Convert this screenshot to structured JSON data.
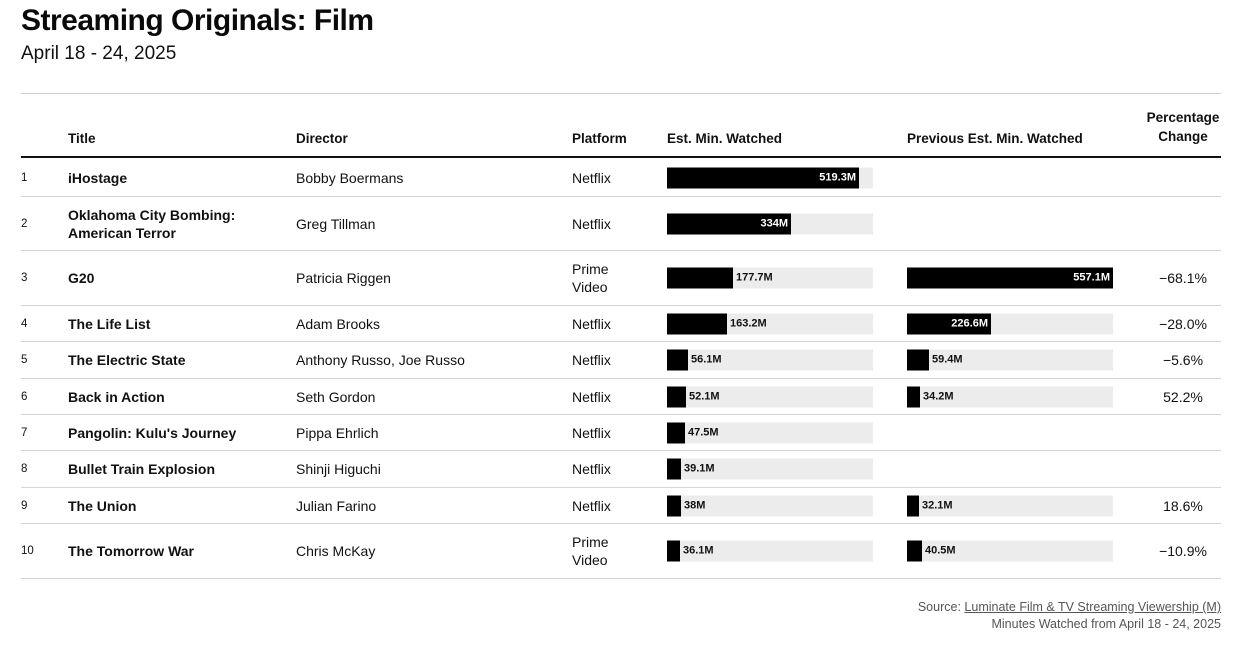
{
  "title": "Streaming Originals: Film",
  "subtitle": "April 18 - 24, 2025",
  "headers": {
    "title": "Title",
    "director": "Director",
    "platform": "Platform",
    "est": "Est. Min. Watched",
    "prev": "Previous Est. Min. Watched",
    "pct": "Percentage Change"
  },
  "source": {
    "prefix": "Source:",
    "link": "Luminate Film & TV Streaming Viewership (M)",
    "note": "Minutes Watched from April 18 - 24, 2025"
  },
  "colors": {
    "bar": "#000000",
    "track": "#ececec",
    "rule": "#d6d6d6"
  },
  "chart_data": {
    "type": "table",
    "scale_max": 557.1,
    "rows": [
      {
        "rank": "1",
        "title": "iHostage",
        "director": "Bobby Boermans",
        "platform": "Netflix",
        "est": 519.3,
        "est_label": "519.3M",
        "prev": null,
        "prev_label": "",
        "pct": ""
      },
      {
        "rank": "2",
        "title": "Oklahoma City Bombing: American Terror",
        "director": "Greg Tillman",
        "platform": "Netflix",
        "est": 334,
        "est_label": "334M",
        "prev": null,
        "prev_label": "",
        "pct": ""
      },
      {
        "rank": "3",
        "title": "G20",
        "director": "Patricia Riggen",
        "platform": "Prime Video",
        "est": 177.7,
        "est_label": "177.7M",
        "prev": 557.1,
        "prev_label": "557.1M",
        "pct": "−68.1%"
      },
      {
        "rank": "4",
        "title": "The Life List",
        "director": "Adam Brooks",
        "platform": "Netflix",
        "est": 163.2,
        "est_label": "163.2M",
        "prev": 226.6,
        "prev_label": "226.6M",
        "pct": "−28.0%"
      },
      {
        "rank": "5",
        "title": "The Electric State",
        "director": "Anthony Russo, Joe Russo",
        "platform": "Netflix",
        "est": 56.1,
        "est_label": "56.1M",
        "prev": 59.4,
        "prev_label": "59.4M",
        "pct": "−5.6%"
      },
      {
        "rank": "6",
        "title": "Back in Action",
        "director": "Seth Gordon",
        "platform": "Netflix",
        "est": 52.1,
        "est_label": "52.1M",
        "prev": 34.2,
        "prev_label": "34.2M",
        "pct": "52.2%"
      },
      {
        "rank": "7",
        "title": "Pangolin: Kulu's Journey",
        "director": "Pippa Ehrlich",
        "platform": "Netflix",
        "est": 47.5,
        "est_label": "47.5M",
        "prev": null,
        "prev_label": "",
        "pct": ""
      },
      {
        "rank": "8",
        "title": "Bullet Train Explosion",
        "director": "Shinji Higuchi",
        "platform": "Netflix",
        "est": 39.1,
        "est_label": "39.1M",
        "prev": null,
        "prev_label": "",
        "pct": ""
      },
      {
        "rank": "9",
        "title": "The Union",
        "director": "Julian Farino",
        "platform": "Netflix",
        "est": 38,
        "est_label": "38M",
        "prev": 32.1,
        "prev_label": "32.1M",
        "pct": "18.6%"
      },
      {
        "rank": "10",
        "title": "The Tomorrow War",
        "director": "Chris McKay",
        "platform": "Prime Video",
        "est": 36.1,
        "est_label": "36.1M",
        "prev": 40.5,
        "prev_label": "40.5M",
        "pct": "−10.9%"
      }
    ]
  }
}
